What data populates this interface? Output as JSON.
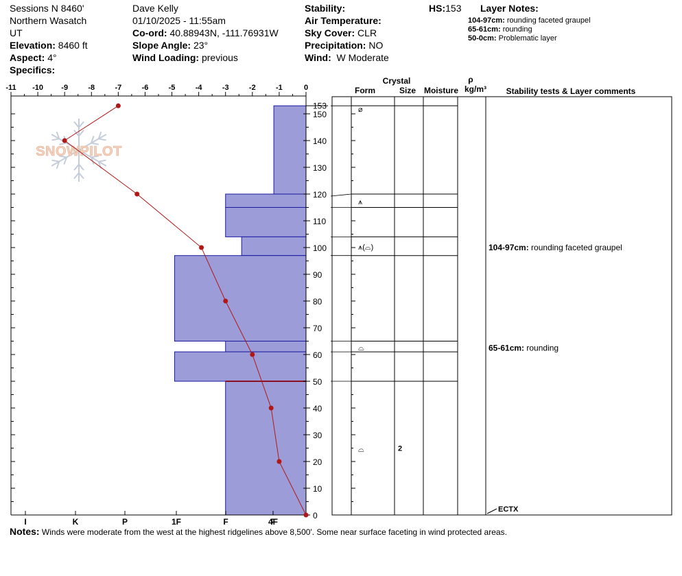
{
  "header": {
    "location": "Sessions N 8460'",
    "range": "Northern Wasatch",
    "state": "UT",
    "elevation_label": "Elevation:",
    "elevation_value": "8460 ft",
    "aspect_label": "Aspect:",
    "aspect_value": "4°",
    "specifics_label": "Specifics:",
    "observer": "Dave Kelly",
    "datetime": "01/10/2025 - 11:55am",
    "coord_label": "Co-ord:",
    "coord_value": "40.88943N, -111.76931W",
    "slope_label": "Slope Angle:",
    "slope_value": "23°",
    "wind_loading_label": "Wind Loading:",
    "wind_loading_value": "previous",
    "stability_label": "Stability:",
    "air_temp_label": "Air Temperature:",
    "sky_label": "Sky Cover:",
    "sky_value": "CLR",
    "precip_label": "Precipitation:",
    "precip_value": "NO",
    "wind_label": "Wind:",
    "wind_value": "W Moderate",
    "hs_label": "HS:",
    "hs_value": "153",
    "layer_notes_title": "Layer Notes:",
    "layer_notes": [
      {
        "range": "104-97cm:",
        "text": "rounding faceted graupel"
      },
      {
        "range": "65-61cm:",
        "text": "rounding"
      },
      {
        "range": "50-0cm:",
        "text": "Problematic layer"
      }
    ]
  },
  "logo_text": "SNOWPILOT",
  "columns": {
    "crystal": "Crystal",
    "form": "Form",
    "size": "Size",
    "moisture": "Moisture",
    "rho": "ρ",
    "density_unit": "kg/m³",
    "tests": "Stability tests & Layer comments"
  },
  "layer_comments": [
    {
      "depth": 100,
      "range": "104-97cm:",
      "text": "rounding faceted graupel"
    },
    {
      "depth": 62.5,
      "range": "65-61cm:",
      "text": "rounding"
    }
  ],
  "test_label": {
    "depth": 0,
    "text": "ECTX"
  },
  "crystal_forms": [
    {
      "depth": 152,
      "glyph": "⌀",
      "icon": "precipitation-particle-icon",
      "size": ""
    },
    {
      "depth": 117.5,
      "glyph": "⩚",
      "icon": "faceted-rounding-icon",
      "size": ""
    },
    {
      "depth": 100.5,
      "glyph": "⩚(⌓)",
      "icon": "graupel-facet-icon",
      "size": ""
    },
    {
      "depth": 63,
      "glyph": "⌓",
      "icon": "rounding-icon",
      "size": ""
    },
    {
      "depth": 25,
      "glyph": "⌓",
      "icon": "rounding-icon",
      "size": "2"
    }
  ],
  "layer_boundaries": [
    153,
    120,
    115,
    104,
    97,
    65,
    61,
    50
  ],
  "notes_label": "Notes:",
  "notes_text": "Winds were moderate from the west at the highest ridgelines above 8,500'. Some near surface faceting in wind protected areas.",
  "colors": {
    "hardness_fill": "#9c9cd8",
    "hardness_stroke": "#1a1aa0",
    "temp_line": "#b01818",
    "logo_fill": "#f3cdb8",
    "logo_stroke": "#bfc8d8"
  },
  "chart_data": {
    "type": "line",
    "ylabel": "",
    "ylim": [
      0,
      153
    ],
    "yticks": [
      0,
      10,
      20,
      30,
      40,
      50,
      60,
      70,
      80,
      90,
      100,
      110,
      120,
      130,
      140,
      150
    ],
    "ytick_extra": 153,
    "temperature_axis": {
      "xlim": [
        -11,
        0
      ],
      "ticks": [
        "-11",
        "-10",
        "-9",
        "-8",
        "-7",
        "-6",
        "-5",
        "-4",
        "-3",
        "-2",
        "-1",
        "0"
      ]
    },
    "hardness_axis": {
      "ticks": [
        "I",
        "K",
        "P",
        "1F",
        "F",
        "4F",
        "F"
      ],
      "tick_values": [
        -10.5,
        -8.6,
        -6.7,
        -4.9,
        -3,
        -1.3,
        null
      ]
    },
    "temperature_profile": [
      {
        "depth": 153,
        "temp": -7.0
      },
      {
        "depth": 140,
        "temp": -9.0
      },
      {
        "depth": 120,
        "temp": -6.3
      },
      {
        "depth": 100,
        "temp": -3.9
      },
      {
        "depth": 80,
        "temp": -3.0
      },
      {
        "depth": 60,
        "temp": -2.0
      },
      {
        "depth": 40,
        "temp": -1.3
      },
      {
        "depth": 20,
        "temp": -1.0
      },
      {
        "depth": 0,
        "temp": 0.0
      }
    ],
    "hardness_layers": [
      {
        "top": 153,
        "bottom": 120,
        "hardness": "4F",
        "x": -1.2
      },
      {
        "top": 120,
        "bottom": 115,
        "hardness": "1F",
        "x": -3.0
      },
      {
        "top": 115,
        "bottom": 104,
        "hardness": "1F",
        "x": -3.0
      },
      {
        "top": 104,
        "bottom": 97,
        "hardness": "1F",
        "x": -2.4
      },
      {
        "top": 97,
        "bottom": 65,
        "hardness": "P",
        "x": -4.9
      },
      {
        "top": 65,
        "bottom": 61,
        "hardness": "1F",
        "x": -3.0
      },
      {
        "top": 61,
        "bottom": 50,
        "hardness": "P",
        "x": -4.9
      },
      {
        "top": 50,
        "bottom": 0,
        "hardness": "1F",
        "x": -3.0
      }
    ]
  }
}
